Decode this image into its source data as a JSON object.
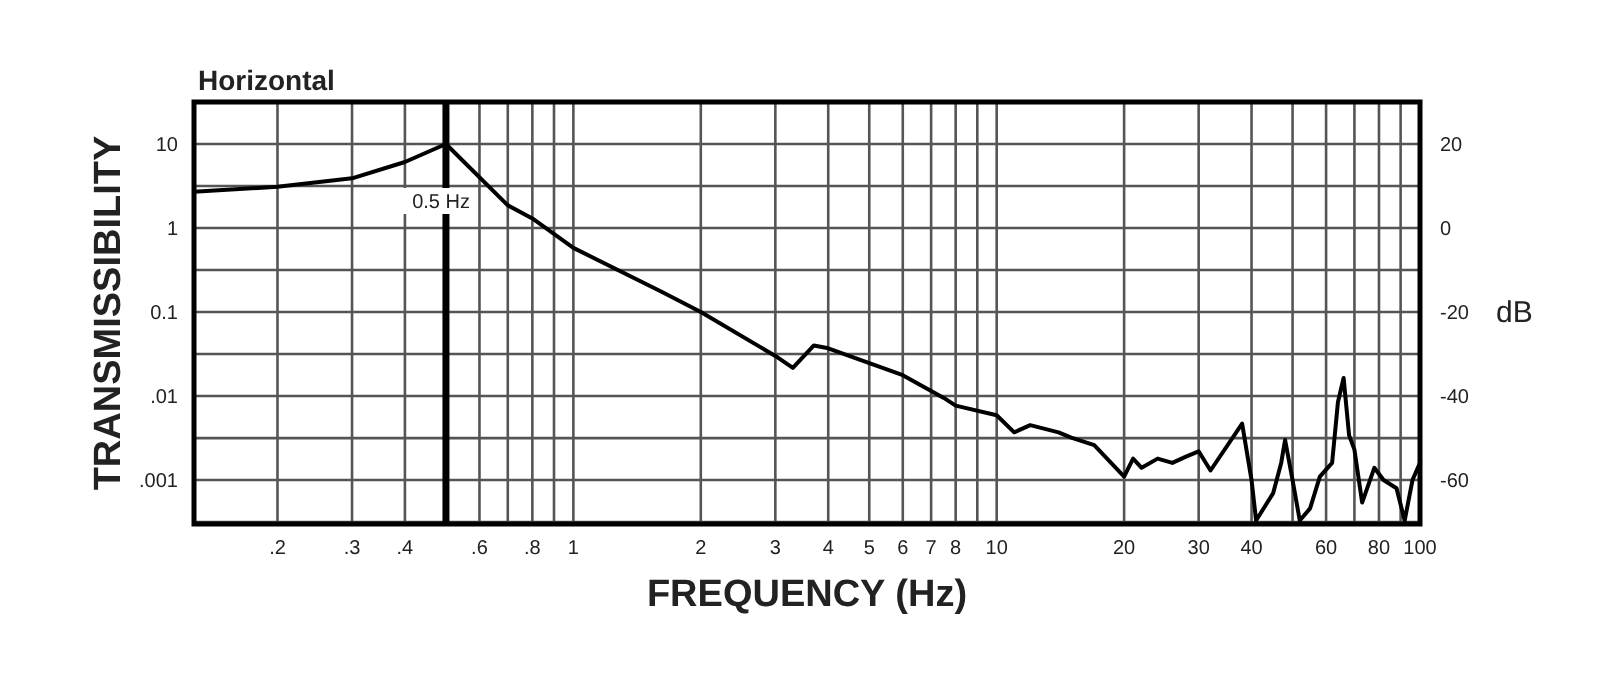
{
  "chart_data": {
    "type": "line",
    "title": "Horizontal",
    "xlabel": "FREQUENCY (Hz)",
    "ylabel": "TRANSMISSIBILITY",
    "y2label": "dB",
    "log": "xy",
    "grid": true,
    "line_style": "solid",
    "xlim": [
      0.127,
      100
    ],
    "xticks": [
      {
        "value": 0.2,
        "label": ".2"
      },
      {
        "value": 0.3,
        "label": ".3"
      },
      {
        "value": 0.4,
        "label": ".4"
      },
      {
        "value": 0.5,
        "label": null
      },
      {
        "value": 0.6,
        "label": ".6"
      },
      {
        "value": 0.7,
        "label": null
      },
      {
        "value": 0.8,
        "label": ".8"
      },
      {
        "value": 0.9,
        "label": null
      },
      1,
      2,
      3,
      4,
      5,
      6,
      7,
      8,
      {
        "value": 9,
        "label": null
      },
      10,
      20,
      30,
      40,
      {
        "value": 50,
        "label": null
      },
      60,
      {
        "value": 70,
        "label": null
      },
      80,
      {
        "value": 90,
        "label": null
      },
      100
    ],
    "ylim": [
      0.0003,
      31.6
    ],
    "yticks": [
      {
        "value": 0.000316,
        "label": null
      },
      {
        "value": 0.001,
        "label": ".001"
      },
      {
        "value": 0.00316,
        "label": null
      },
      {
        "value": 0.01,
        "label": ".01"
      },
      {
        "value": 0.0316,
        "label": null
      },
      {
        "value": 0.1,
        "label": "0.1"
      },
      {
        "value": 0.316,
        "label": null
      },
      1,
      {
        "value": 3.16,
        "label": null
      },
      10
    ],
    "y2lim": [
      -70.5,
      30
    ],
    "y2ticks": [
      20,
      0,
      -20,
      -40,
      -60
    ],
    "ref_lines": [
      {
        "axis": "x",
        "value": 0.5,
        "label": "0.5 Hz",
        "color": "#000000"
      }
    ],
    "series": [
      {
        "color": "#000000",
        "x": [
          0.127,
          0.2,
          0.3,
          0.4,
          0.5,
          0.7,
          0.8,
          1,
          1.62,
          2,
          3,
          3.3,
          3.7,
          4,
          6,
          7.5,
          8,
          10,
          11,
          12,
          14,
          15,
          17,
          20,
          21,
          22,
          24,
          26,
          28,
          30,
          32,
          38,
          40,
          41,
          45,
          47,
          48,
          50,
          52,
          55,
          58,
          62,
          64,
          66,
          68,
          70,
          73,
          78,
          82,
          88,
          92,
          96,
          100
        ],
        "values": [
          2.7,
          3.1,
          3.9,
          6.1,
          10,
          1.86,
          1.3,
          0.58,
          0.173,
          0.1,
          0.03,
          0.0216,
          0.04,
          0.037,
          0.0177,
          0.0095,
          0.0077,
          0.0059,
          0.0037,
          0.0045,
          0.0037,
          0.0032,
          0.0026,
          0.0011,
          0.0018,
          0.0014,
          0.0018,
          0.0016,
          0.0019,
          0.0022,
          0.0013,
          0.0047,
          0.001,
          0.00033,
          0.0007,
          0.0016,
          0.003,
          0.001,
          0.00033,
          0.00046,
          0.0011,
          0.0016,
          0.0085,
          0.0164,
          0.0034,
          0.0023,
          0.00054,
          0.0014,
          0.001,
          0.0008,
          0.00033,
          0.001,
          0.0016
        ]
      }
    ]
  }
}
